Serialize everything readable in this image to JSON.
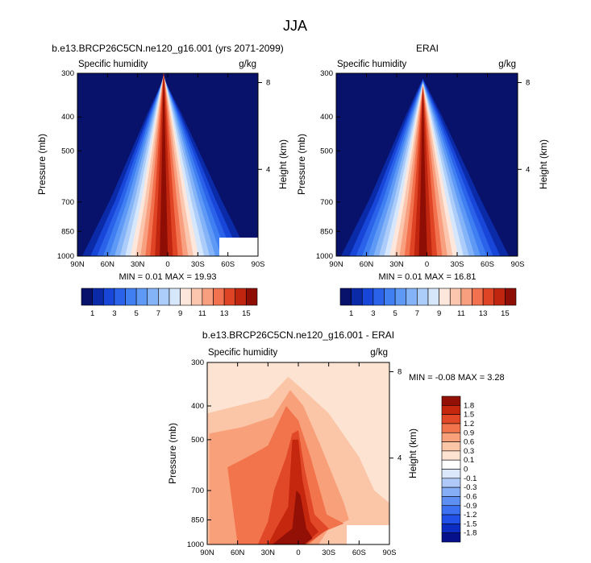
{
  "page_title": "JJA",
  "chart_data": [
    {
      "type": "heatmap",
      "title": "b.e13.BRCP26C5CN.ne120_g16.001 (yrs 2071-2099)",
      "left_label": "Specific humidity",
      "right_label": "g/kg",
      "ylabel": "Pressure (mb)",
      "y2label": "Height (km)",
      "x_ticks": [
        "90N",
        "60N",
        "30N",
        "0",
        "30S",
        "60S",
        "90S"
      ],
      "y_ticks": [
        300,
        400,
        500,
        700,
        850,
        1000
      ],
      "y2_ticks": [
        "8",
        "4"
      ],
      "ylim": [
        1000,
        300
      ],
      "stats": "MIN =  0.01  MAX = 19.93",
      "colorbar_labels": [
        "1",
        "3",
        "5",
        "7",
        "9",
        "11",
        "13",
        "15"
      ],
      "levels": [
        1,
        2,
        3,
        4,
        5,
        6,
        7,
        8,
        9,
        10,
        11,
        12,
        13,
        14,
        15
      ]
    },
    {
      "type": "heatmap",
      "title": "ERAI",
      "left_label": "Specific humidity",
      "right_label": "g/kg",
      "ylabel": "Pressure (mb)",
      "y2label": "Height (km)",
      "x_ticks": [
        "90N",
        "60N",
        "30N",
        "0",
        "30S",
        "60S",
        "90S"
      ],
      "y_ticks": [
        300,
        400,
        500,
        700,
        850,
        1000
      ],
      "y2_ticks": [
        "8",
        "4"
      ],
      "ylim": [
        1000,
        300
      ],
      "stats": "MIN =  0.01  MAX = 16.81",
      "colorbar_labels": [
        "1",
        "3",
        "5",
        "7",
        "9",
        "11",
        "13",
        "15"
      ],
      "levels": [
        1,
        2,
        3,
        4,
        5,
        6,
        7,
        8,
        9,
        10,
        11,
        12,
        13,
        14,
        15
      ]
    },
    {
      "type": "heatmap",
      "title": "b.e13.BRCP26C5CN.ne120_g16.001 - ERAI",
      "left_label": "Specific humidity",
      "right_label": "g/kg",
      "ylabel": "Pressure (mb)",
      "y2label": "Height (km)",
      "x_ticks": [
        "90N",
        "60N",
        "30N",
        "0",
        "30S",
        "60S",
        "90S"
      ],
      "y_ticks": [
        300,
        400,
        500,
        700,
        850,
        1000
      ],
      "y2_ticks": [
        "8",
        "4"
      ],
      "ylim": [
        1000,
        300
      ],
      "stats": "MIN = -0.08  MAX =  3.28",
      "colorbar_labels": [
        "1.8",
        "1.5",
        "1.2",
        "0.9",
        "0.6",
        "0.3",
        "0.1",
        "0",
        "-0.1",
        "-0.3",
        "-0.6",
        "-0.9",
        "-1.2",
        "-1.5",
        "-1.8"
      ],
      "levels": [
        -1.8,
        -1.5,
        -1.2,
        -0.9,
        -0.6,
        -0.3,
        -0.1,
        0,
        0.1,
        0.3,
        0.6,
        0.9,
        1.2,
        1.5,
        1.8
      ]
    }
  ],
  "colors": {
    "abs_scale": [
      "#08126b",
      "#0a2aa8",
      "#1846d8",
      "#2a62ea",
      "#3f7ff2",
      "#5e9af5",
      "#84b4f7",
      "#acccf9",
      "#d6e6fb",
      "#fde7dc",
      "#fbc6ad",
      "#f89f7f",
      "#f2724f",
      "#df4524",
      "#c0260f",
      "#8e0e05"
    ],
    "diff_scale": [
      "#06108a",
      "#0c2cc2",
      "#2050e8",
      "#3c72f2",
      "#5e90f4",
      "#86aef6",
      "#afcaf8",
      "#dbe7fb",
      "#ffffff",
      "#fde3d2",
      "#fbc5a8",
      "#f8a07a",
      "#f2744c",
      "#e04828",
      "#c5260e",
      "#921005"
    ]
  }
}
